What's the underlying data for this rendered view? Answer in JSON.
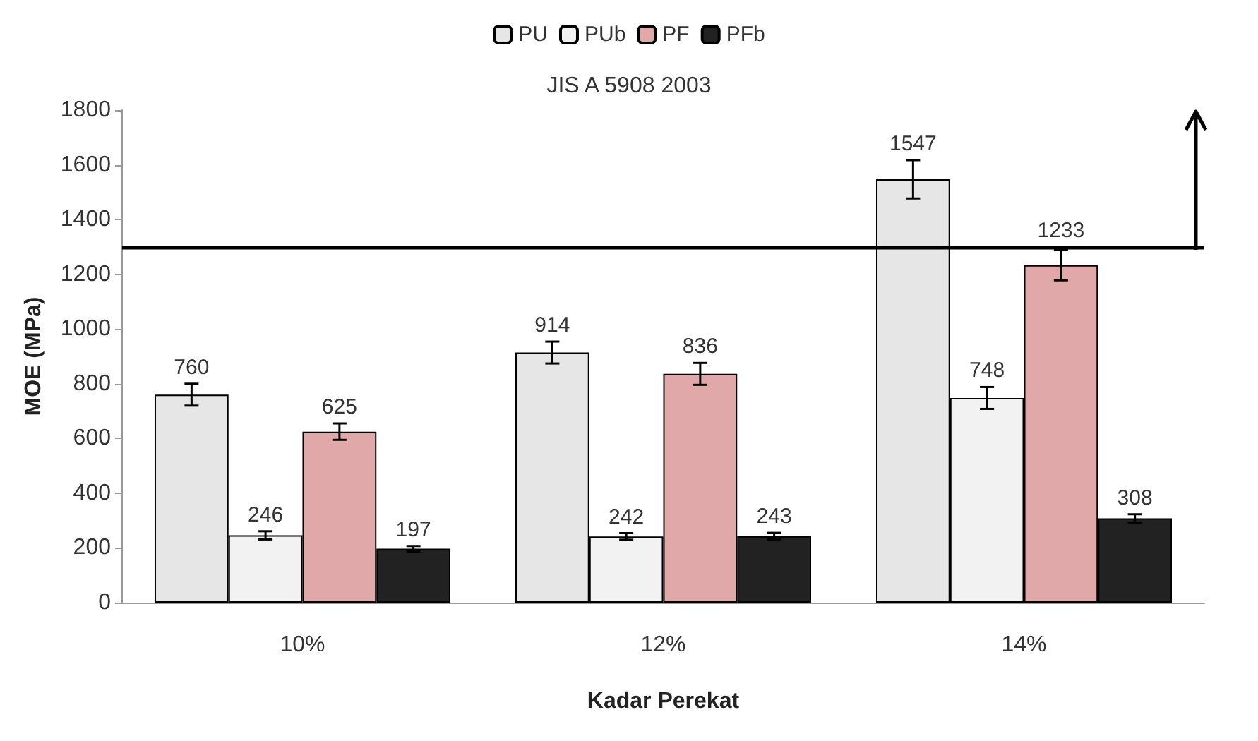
{
  "chart_data": {
    "type": "bar",
    "title": "JIS A 5908 2003",
    "xlabel": "Kadar Perekat",
    "ylabel": "MOE (MPa)",
    "categories": [
      "10%",
      "12%",
      "14%"
    ],
    "series": [
      {
        "name": "PU",
        "color": "#e6e6e6",
        "values": [
          760,
          914,
          1547
        ],
        "errors": [
          40,
          40,
          70
        ]
      },
      {
        "name": "PUb",
        "color": "#f2f2f2",
        "values": [
          246,
          242,
          748
        ],
        "errors": [
          15,
          12,
          40
        ]
      },
      {
        "name": "PF",
        "color": "#e0a8a8",
        "values": [
          625,
          836,
          1233
        ],
        "errors": [
          30,
          40,
          55
        ]
      },
      {
        "name": "PFb",
        "color": "#222222",
        "values": [
          197,
          243,
          308
        ],
        "errors": [
          10,
          12,
          15
        ]
      }
    ],
    "ylim": [
      0,
      1800
    ],
    "yticks": [
      0,
      200,
      400,
      600,
      800,
      1000,
      1200,
      1400,
      1600,
      1800
    ],
    "ref_lines": [
      {
        "axis": "y",
        "value": 1300,
        "color": "#000000"
      }
    ],
    "data_labels": true,
    "grid": false,
    "legend": "top"
  }
}
